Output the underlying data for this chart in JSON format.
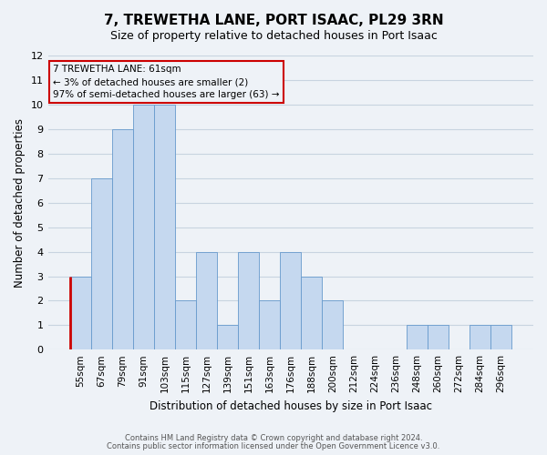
{
  "title": "7, TREWETHA LANE, PORT ISAAC, PL29 3RN",
  "subtitle": "Size of property relative to detached houses in Port Isaac",
  "xlabel": "Distribution of detached houses by size in Port Isaac",
  "ylabel": "Number of detached properties",
  "categories": [
    "55sqm",
    "67sqm",
    "79sqm",
    "91sqm",
    "103sqm",
    "115sqm",
    "127sqm",
    "139sqm",
    "151sqm",
    "163sqm",
    "176sqm",
    "188sqm",
    "200sqm",
    "212sqm",
    "224sqm",
    "236sqm",
    "248sqm",
    "260sqm",
    "272sqm",
    "284sqm",
    "296sqm"
  ],
  "values": [
    3,
    7,
    9,
    10,
    10,
    2,
    4,
    1,
    4,
    2,
    4,
    3,
    2,
    0,
    0,
    0,
    1,
    1,
    0,
    1,
    1
  ],
  "bar_color": "#c5d8ef",
  "bar_edge_color": "#6699cc",
  "highlight_line_color": "#cc0000",
  "ylim": [
    0,
    12
  ],
  "yticks": [
    0,
    1,
    2,
    3,
    4,
    5,
    6,
    7,
    8,
    9,
    10,
    11,
    12
  ],
  "annotation_title": "7 TREWETHA LANE: 61sqm",
  "annotation_line1": "← 3% of detached houses are smaller (2)",
  "annotation_line2": "97% of semi-detached houses are larger (63) →",
  "annotation_box_edgecolor": "#cc0000",
  "footer_line1": "Contains HM Land Registry data © Crown copyright and database right 2024.",
  "footer_line2": "Contains public sector information licensed under the Open Government Licence v3.0.",
  "grid_color": "#c8d4e0",
  "background_color": "#eef2f7"
}
